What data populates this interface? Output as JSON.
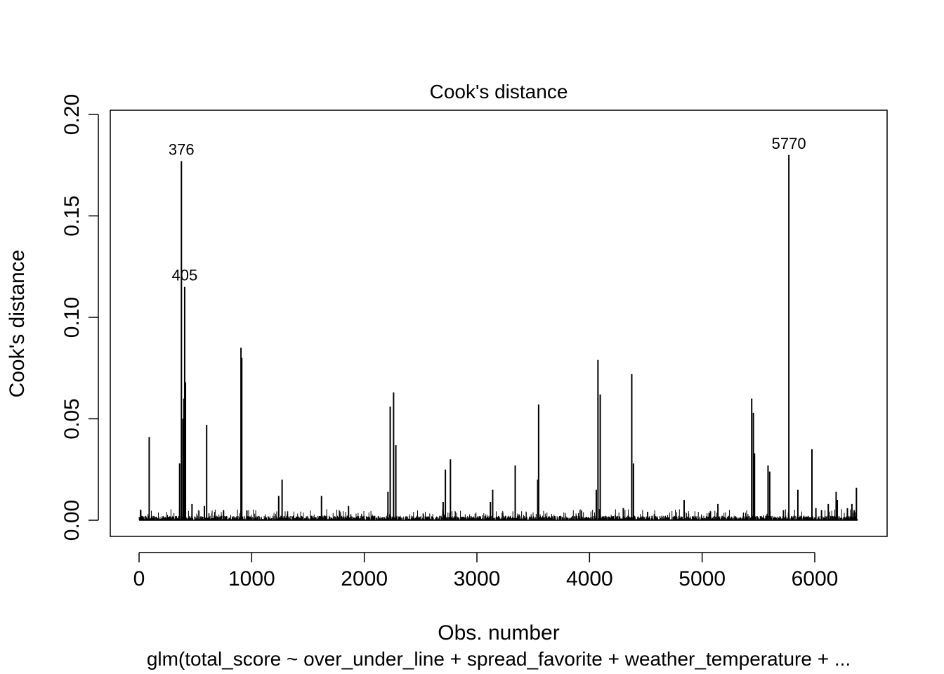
{
  "chart_data": {
    "type": "bar",
    "title": "Cook's distance",
    "xlabel": "Obs. number",
    "ylabel": "Cook's distance",
    "subtitle": "glm(total_score ~ over_under_line + spread_favorite + weather_temperature + ...",
    "xlim": [
      0,
      6400
    ],
    "ylim": [
      0,
      0.2
    ],
    "x_ticks": [
      0,
      1000,
      2000,
      3000,
      4000,
      5000,
      6000
    ],
    "y_ticks": [
      "0.00",
      "0.05",
      "0.10",
      "0.15",
      "0.20"
    ],
    "n_obs": 6380,
    "grid": false,
    "labeled_points": [
      {
        "label": "376",
        "x": 376,
        "y": 0.177
      },
      {
        "label": "405",
        "x": 405,
        "y": 0.115
      },
      {
        "label": "5770",
        "x": 5770,
        "y": 0.18
      }
    ],
    "spikes": [
      [
        15,
        0.005
      ],
      [
        90,
        0.041
      ],
      [
        360,
        0.028
      ],
      [
        376,
        0.177
      ],
      [
        390,
        0.05
      ],
      [
        398,
        0.06
      ],
      [
        405,
        0.115
      ],
      [
        412,
        0.068
      ],
      [
        470,
        0.008
      ],
      [
        580,
        0.007
      ],
      [
        600,
        0.047
      ],
      [
        750,
        0.005
      ],
      [
        905,
        0.085
      ],
      [
        912,
        0.08
      ],
      [
        1240,
        0.012
      ],
      [
        1270,
        0.02
      ],
      [
        1620,
        0.012
      ],
      [
        1860,
        0.007
      ],
      [
        2210,
        0.014
      ],
      [
        2230,
        0.056
      ],
      [
        2260,
        0.063
      ],
      [
        2280,
        0.037
      ],
      [
        2700,
        0.009
      ],
      [
        2720,
        0.025
      ],
      [
        2765,
        0.03
      ],
      [
        3120,
        0.009
      ],
      [
        3140,
        0.015
      ],
      [
        3340,
        0.027
      ],
      [
        3540,
        0.02
      ],
      [
        3548,
        0.057
      ],
      [
        4060,
        0.015
      ],
      [
        4075,
        0.079
      ],
      [
        4095,
        0.062
      ],
      [
        4300,
        0.006
      ],
      [
        4375,
        0.072
      ],
      [
        4390,
        0.028
      ],
      [
        4840,
        0.01
      ],
      [
        5140,
        0.008
      ],
      [
        5440,
        0.06
      ],
      [
        5455,
        0.053
      ],
      [
        5465,
        0.033
      ],
      [
        5585,
        0.027
      ],
      [
        5600,
        0.024
      ],
      [
        5770,
        0.18
      ],
      [
        5850,
        0.015
      ],
      [
        5975,
        0.035
      ],
      [
        6010,
        0.006
      ],
      [
        6060,
        0.005
      ],
      [
        6120,
        0.008
      ],
      [
        6190,
        0.014
      ],
      [
        6200,
        0.01
      ],
      [
        6290,
        0.006
      ],
      [
        6330,
        0.008
      ],
      [
        6350,
        0.005
      ],
      [
        6370,
        0.016
      ]
    ]
  }
}
